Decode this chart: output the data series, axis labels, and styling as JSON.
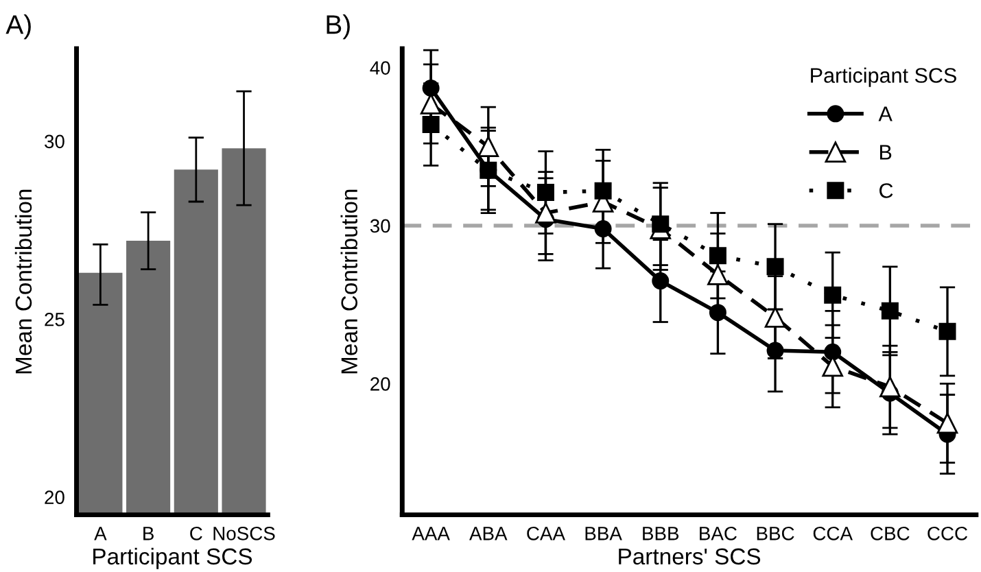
{
  "chart_data": [
    {
      "type": "bar",
      "title": "A)",
      "xlabel": "Participant SCS",
      "ylabel": "Mean Contribution",
      "categories": [
        "A",
        "B",
        "C",
        "NoSCS"
      ],
      "color": "#6e6e6e",
      "values": [
        26.3,
        27.2,
        29.2,
        29.8
      ],
      "errors": [
        [
          25.4,
          27.1
        ],
        [
          26.4,
          28.0
        ],
        [
          28.3,
          30.1
        ],
        [
          28.2,
          31.4
        ]
      ],
      "ylim": [
        19.5,
        32.6
      ],
      "yticks": [
        20,
        25,
        30
      ],
      "grid": false
    },
    {
      "type": "line",
      "title": "B)",
      "xlabel": "Partners' SCS",
      "ylabel": "Mean Contribution",
      "legend_title": "Participant SCS",
      "legend": "top right",
      "grid": false,
      "categories": [
        "AAA",
        "ABA",
        "CAA",
        "BBA",
        "BBB",
        "BAC",
        "BBC",
        "CCA",
        "CBC",
        "CCC"
      ],
      "series": [
        {
          "name": "A",
          "color": "#000000",
          "marker": "circle",
          "line_style": "solid",
          "values": [
            38.7,
            33.5,
            30.4,
            29.8,
            26.5,
            24.5,
            22.1,
            22.0,
            19.4,
            16.8
          ],
          "errors": [
            2.4,
            2.5,
            2.6,
            2.5,
            2.6,
            2.6,
            2.6,
            2.6,
            2.6,
            2.5
          ]
        },
        {
          "name": "B",
          "color": "#000000",
          "marker": "triangle",
          "line_style": "dashed",
          "values": [
            37.7,
            35.0,
            30.8,
            31.5,
            29.8,
            26.9,
            24.2,
            21.1,
            19.8,
            17.5
          ],
          "errors": [
            2.5,
            2.5,
            2.6,
            2.6,
            2.6,
            2.6,
            2.6,
            2.6,
            2.6,
            2.5
          ]
        },
        {
          "name": "C",
          "color": "#000000",
          "marker": "square",
          "line_style": "dotted",
          "values": [
            36.4,
            33.5,
            32.1,
            32.2,
            30.1,
            28.1,
            27.4,
            25.6,
            24.6,
            23.3
          ],
          "errors": [
            2.6,
            2.7,
            2.6,
            2.6,
            2.6,
            2.7,
            2.7,
            2.7,
            2.8,
            2.8
          ]
        }
      ],
      "ref_lines": [
        {
          "axis": "y",
          "value": 30,
          "color": "#a6a6a6",
          "line_style": "dashed"
        }
      ],
      "ylim": [
        11.7,
        41.2
      ],
      "yticks": [
        20,
        30,
        40
      ]
    }
  ]
}
